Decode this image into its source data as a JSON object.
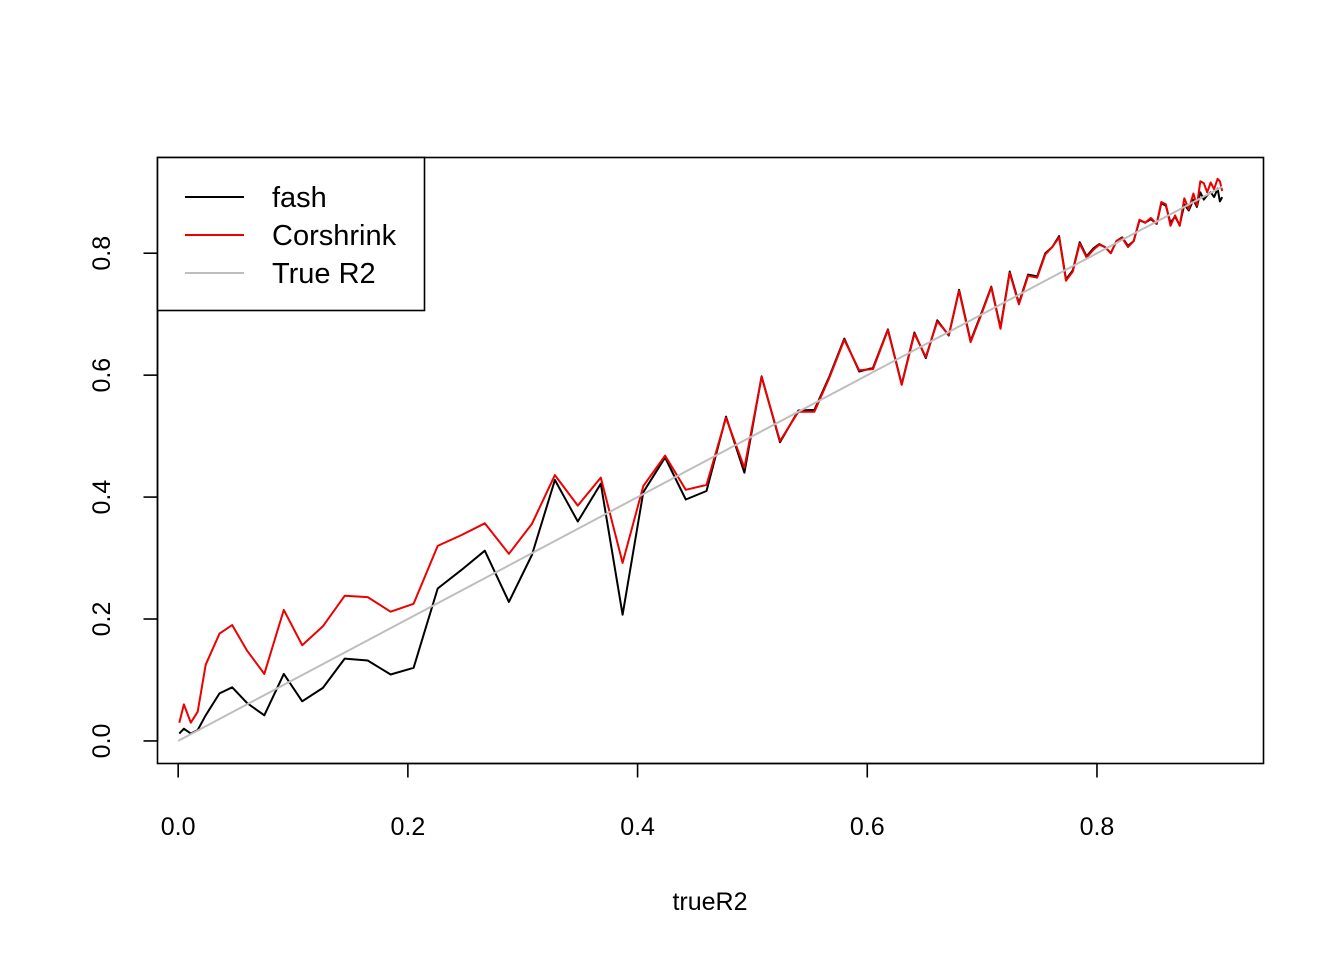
{
  "chart_data": {
    "type": "line",
    "title": "",
    "xlabel": "trueR2",
    "ylabel": "",
    "xlim": [
      -0.018,
      0.945
    ],
    "ylim": [
      -0.037,
      0.957
    ],
    "xticks": [
      "0.0",
      "0.2",
      "0.4",
      "0.6",
      "0.8"
    ],
    "yticks": [
      "0.0",
      "0.2",
      "0.4",
      "0.6",
      "0.8"
    ],
    "grid": false,
    "legend_position": "top-left",
    "series": [
      {
        "name": "fash",
        "color": "#000000",
        "points": [
          [
            0.001,
            0.012
          ],
          [
            0.005,
            0.02
          ],
          [
            0.011,
            0.012
          ],
          [
            0.017,
            0.018
          ],
          [
            0.024,
            0.042
          ],
          [
            0.036,
            0.078
          ],
          [
            0.047,
            0.088
          ],
          [
            0.06,
            0.062
          ],
          [
            0.075,
            0.042
          ],
          [
            0.092,
            0.11
          ],
          [
            0.108,
            0.065
          ],
          [
            0.126,
            0.087
          ],
          [
            0.145,
            0.135
          ],
          [
            0.165,
            0.132
          ],
          [
            0.185,
            0.109
          ],
          [
            0.205,
            0.12
          ],
          [
            0.226,
            0.25
          ],
          [
            0.247,
            0.281
          ],
          [
            0.267,
            0.312
          ],
          [
            0.288,
            0.228
          ],
          [
            0.308,
            0.305
          ],
          [
            0.328,
            0.428
          ],
          [
            0.348,
            0.36
          ],
          [
            0.368,
            0.422
          ],
          [
            0.387,
            0.207
          ],
          [
            0.405,
            0.408
          ],
          [
            0.424,
            0.465
          ],
          [
            0.442,
            0.396
          ],
          [
            0.46,
            0.41
          ],
          [
            0.477,
            0.532
          ],
          [
            0.493,
            0.44
          ],
          [
            0.508,
            0.598
          ],
          [
            0.524,
            0.49
          ],
          [
            0.54,
            0.542
          ],
          [
            0.554,
            0.543
          ],
          [
            0.567,
            0.598
          ],
          [
            0.58,
            0.66
          ],
          [
            0.593,
            0.606
          ],
          [
            0.605,
            0.612
          ],
          [
            0.618,
            0.675
          ],
          [
            0.63,
            0.585
          ],
          [
            0.641,
            0.67
          ],
          [
            0.651,
            0.628
          ],
          [
            0.661,
            0.69
          ],
          [
            0.671,
            0.665
          ],
          [
            0.68,
            0.74
          ],
          [
            0.69,
            0.656
          ],
          [
            0.699,
            0.7
          ],
          [
            0.708,
            0.745
          ],
          [
            0.716,
            0.678
          ],
          [
            0.724,
            0.77
          ],
          [
            0.732,
            0.718
          ],
          [
            0.74,
            0.765
          ],
          [
            0.748,
            0.762
          ],
          [
            0.755,
            0.8
          ],
          [
            0.761,
            0.81
          ],
          [
            0.767,
            0.828
          ],
          [
            0.773,
            0.757
          ],
          [
            0.779,
            0.772
          ],
          [
            0.785,
            0.818
          ],
          [
            0.791,
            0.795
          ],
          [
            0.797,
            0.808
          ],
          [
            0.802,
            0.815
          ],
          [
            0.807,
            0.81
          ],
          [
            0.812,
            0.8
          ],
          [
            0.817,
            0.82
          ],
          [
            0.822,
            0.826
          ],
          [
            0.827,
            0.812
          ],
          [
            0.832,
            0.82
          ],
          [
            0.837,
            0.854
          ],
          [
            0.842,
            0.85
          ],
          [
            0.847,
            0.856
          ],
          [
            0.852,
            0.848
          ],
          [
            0.856,
            0.882
          ],
          [
            0.86,
            0.878
          ],
          [
            0.864,
            0.85
          ],
          [
            0.868,
            0.86
          ],
          [
            0.872,
            0.846
          ],
          [
            0.876,
            0.88
          ],
          [
            0.88,
            0.87
          ],
          [
            0.884,
            0.888
          ],
          [
            0.887,
            0.876
          ],
          [
            0.89,
            0.9
          ],
          [
            0.893,
            0.888
          ],
          [
            0.896,
            0.895
          ],
          [
            0.899,
            0.9
          ],
          [
            0.902,
            0.892
          ],
          [
            0.905,
            0.906
          ],
          [
            0.907,
            0.885
          ],
          [
            0.909,
            0.892
          ]
        ]
      },
      {
        "name": "Corshrink",
        "color": "#ee0000",
        "points": [
          [
            0.001,
            0.03
          ],
          [
            0.005,
            0.06
          ],
          [
            0.011,
            0.03
          ],
          [
            0.017,
            0.048
          ],
          [
            0.024,
            0.125
          ],
          [
            0.036,
            0.176
          ],
          [
            0.047,
            0.19
          ],
          [
            0.06,
            0.148
          ],
          [
            0.075,
            0.11
          ],
          [
            0.092,
            0.215
          ],
          [
            0.108,
            0.157
          ],
          [
            0.126,
            0.188
          ],
          [
            0.145,
            0.238
          ],
          [
            0.165,
            0.236
          ],
          [
            0.185,
            0.212
          ],
          [
            0.205,
            0.225
          ],
          [
            0.226,
            0.32
          ],
          [
            0.247,
            0.338
          ],
          [
            0.267,
            0.357
          ],
          [
            0.288,
            0.307
          ],
          [
            0.308,
            0.356
          ],
          [
            0.328,
            0.436
          ],
          [
            0.348,
            0.386
          ],
          [
            0.368,
            0.432
          ],
          [
            0.387,
            0.292
          ],
          [
            0.405,
            0.418
          ],
          [
            0.424,
            0.468
          ],
          [
            0.442,
            0.412
          ],
          [
            0.46,
            0.42
          ],
          [
            0.477,
            0.53
          ],
          [
            0.493,
            0.448
          ],
          [
            0.508,
            0.597
          ],
          [
            0.524,
            0.492
          ],
          [
            0.54,
            0.54
          ],
          [
            0.554,
            0.54
          ],
          [
            0.567,
            0.596
          ],
          [
            0.58,
            0.658
          ],
          [
            0.593,
            0.608
          ],
          [
            0.605,
            0.61
          ],
          [
            0.618,
            0.674
          ],
          [
            0.63,
            0.584
          ],
          [
            0.641,
            0.668
          ],
          [
            0.651,
            0.63
          ],
          [
            0.661,
            0.688
          ],
          [
            0.671,
            0.666
          ],
          [
            0.68,
            0.738
          ],
          [
            0.69,
            0.654
          ],
          [
            0.699,
            0.698
          ],
          [
            0.708,
            0.744
          ],
          [
            0.716,
            0.676
          ],
          [
            0.724,
            0.768
          ],
          [
            0.732,
            0.716
          ],
          [
            0.74,
            0.763
          ],
          [
            0.748,
            0.76
          ],
          [
            0.755,
            0.798
          ],
          [
            0.761,
            0.81
          ],
          [
            0.767,
            0.826
          ],
          [
            0.773,
            0.755
          ],
          [
            0.779,
            0.77
          ],
          [
            0.785,
            0.816
          ],
          [
            0.791,
            0.793
          ],
          [
            0.797,
            0.806
          ],
          [
            0.802,
            0.814
          ],
          [
            0.807,
            0.81
          ],
          [
            0.812,
            0.8
          ],
          [
            0.817,
            0.82
          ],
          [
            0.822,
            0.825
          ],
          [
            0.827,
            0.81
          ],
          [
            0.832,
            0.82
          ],
          [
            0.837,
            0.855
          ],
          [
            0.842,
            0.85
          ],
          [
            0.847,
            0.858
          ],
          [
            0.852,
            0.848
          ],
          [
            0.856,
            0.884
          ],
          [
            0.86,
            0.88
          ],
          [
            0.864,
            0.845
          ],
          [
            0.868,
            0.862
          ],
          [
            0.872,
            0.845
          ],
          [
            0.876,
            0.89
          ],
          [
            0.88,
            0.872
          ],
          [
            0.884,
            0.898
          ],
          [
            0.887,
            0.878
          ],
          [
            0.89,
            0.918
          ],
          [
            0.893,
            0.915
          ],
          [
            0.896,
            0.9
          ],
          [
            0.899,
            0.916
          ],
          [
            0.902,
            0.905
          ],
          [
            0.905,
            0.922
          ],
          [
            0.907,
            0.918
          ],
          [
            0.909,
            0.902
          ]
        ]
      },
      {
        "name": "True R2",
        "color": "#bebebe",
        "points": [
          [
            0.0,
            0.0
          ],
          [
            0.909,
            0.909
          ]
        ]
      }
    ]
  }
}
